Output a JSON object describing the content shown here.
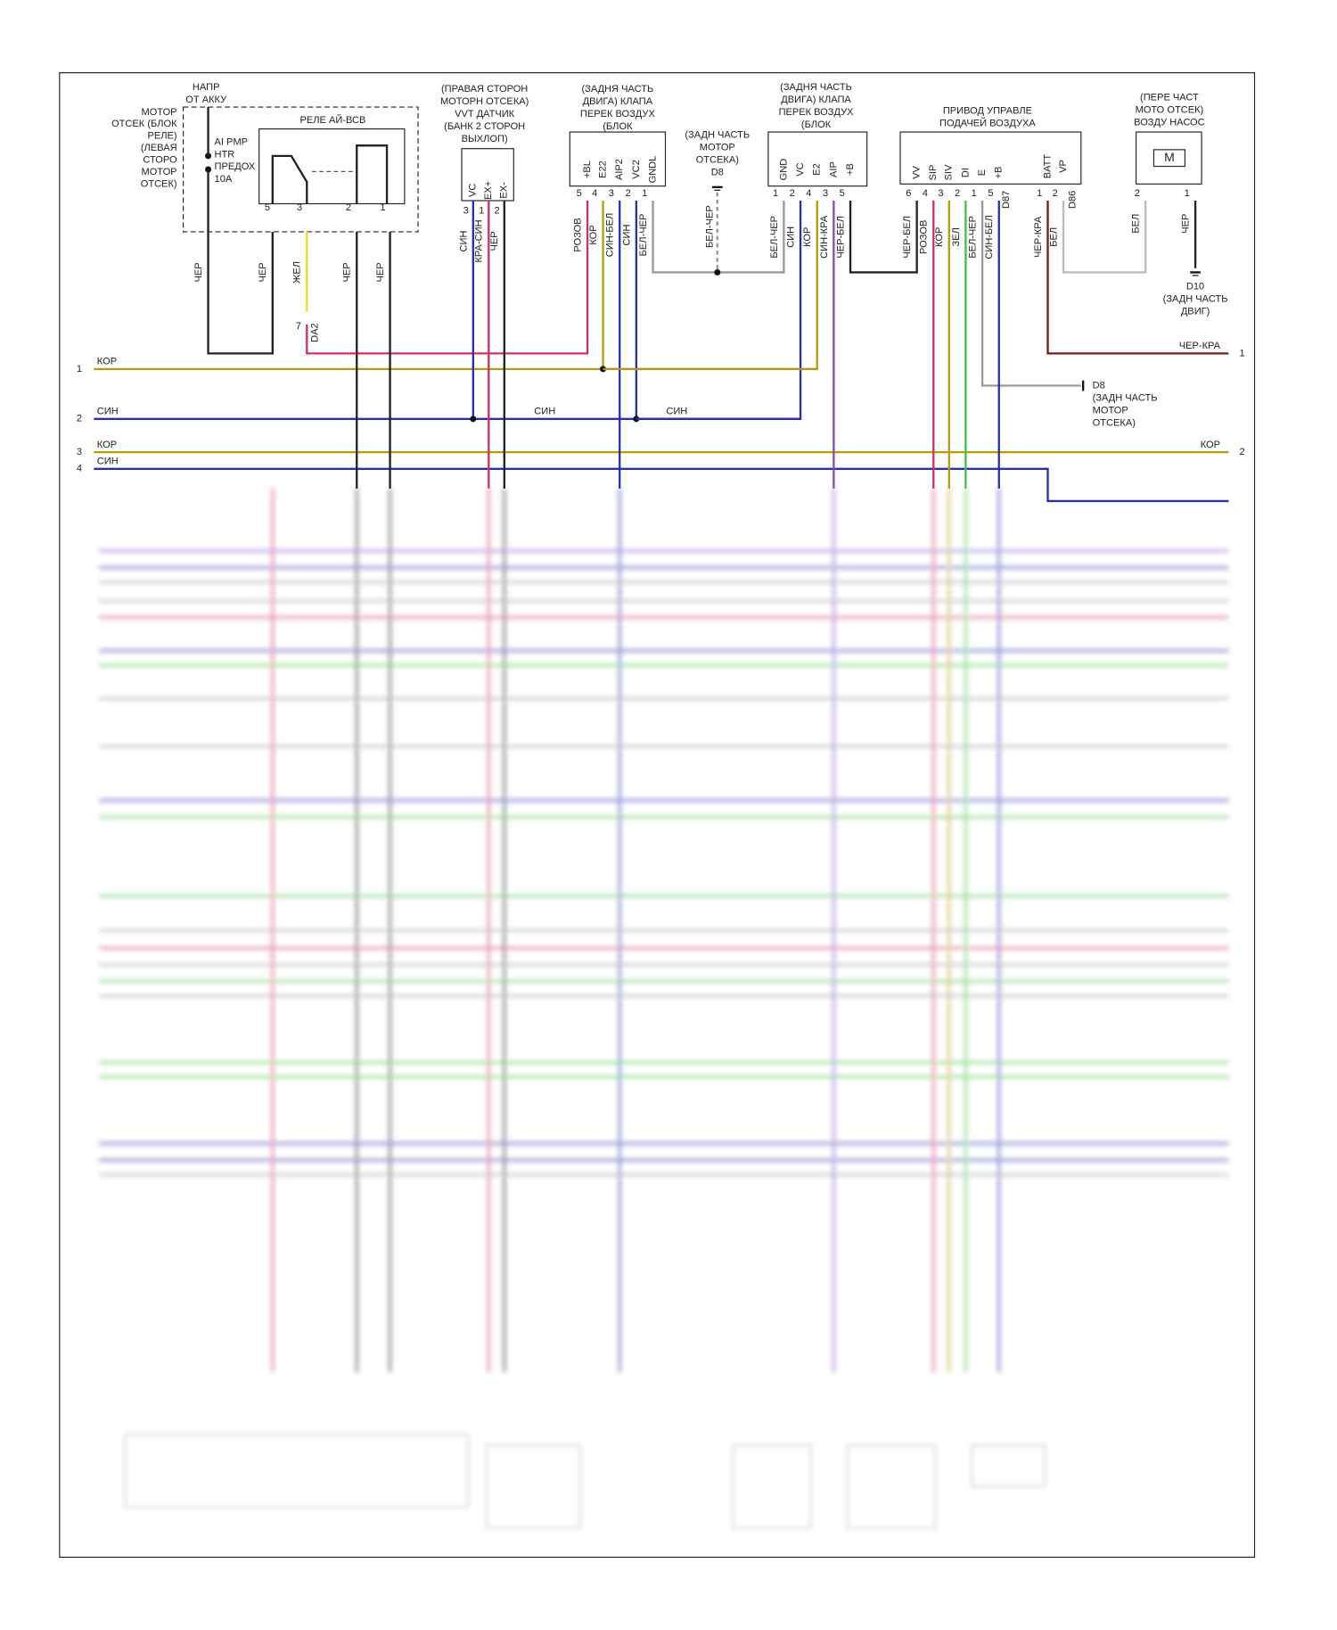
{
  "relay_block": {
    "supply_label": [
      "НАПР",
      "ОТ АККУ"
    ],
    "location": [
      "МОТОР",
      "ОТСЕК (БЛОК",
      "РЕЛЕ)",
      "(ЛЕВАЯ",
      "СТОРО",
      "МОТОР",
      "ОТСЕК)"
    ],
    "fuse": [
      "AI PMP",
      "HTR",
      "ПРЕДОХ",
      "10A"
    ],
    "relay_title": "РЕЛЕ АЙ-ВСВ",
    "pins": [
      "5",
      "3",
      "2",
      "1"
    ],
    "wires": [
      "ЧЕР",
      "ЧЕР",
      "ЖЕЛ",
      "ЧЕР",
      "ЧЕР"
    ],
    "connector": {
      "pin": "7",
      "name": "DA2"
    }
  },
  "vvt_sensor": {
    "title": [
      "(ПРАВАЯ СТОРОН",
      "МОТОРН ОТСЕКА)",
      "VVT ДАТЧИК",
      "(БАНК 2 СТОРОН",
      "ВЫХЛОП)"
    ],
    "pins": [
      "VC",
      "EX+",
      "EX-"
    ],
    "pin_numbers": [
      "3",
      "1",
      "2"
    ],
    "wires": [
      "СИН",
      "КРА-СИН",
      "ЧЕР"
    ]
  },
  "valve_1": {
    "title": [
      "(ЗАДНЯ ЧАСТЬ",
      "ДВИГА) КЛАПА",
      "ПЕРЕК ВОЗДУХ",
      "(БЛОК"
    ],
    "pins": [
      "+BL",
      "E22",
      "AIP2",
      "VC2",
      "GNDL"
    ],
    "pin_numbers": [
      "5",
      "4",
      "3",
      "2",
      "1"
    ],
    "wires": [
      "РОЗОВ",
      "КОР",
      "СИН-БЕЛ",
      "СИН",
      "БЕЛ-ЧЕР"
    ]
  },
  "ground_d8_top": {
    "label": [
      "(ЗАДН ЧАСТЬ",
      "МОТОР",
      "ОТСЕКА)",
      "D8"
    ],
    "wire": "БЕЛ-ЧЕР"
  },
  "valve_2": {
    "title": [
      "(ЗАДНЯ ЧАСТЬ",
      "ДВИГА) КЛАПА",
      "ПЕРЕК ВОЗДУХ",
      "(БЛОК"
    ],
    "pins": [
      "GND",
      "VC",
      "E2",
      "AIP",
      "+B"
    ],
    "pin_numbers": [
      "1",
      "2",
      "4",
      "3",
      "5"
    ],
    "wires": [
      "БЕЛ-ЧЕР",
      "СИН",
      "КОР",
      "СИН-КРА",
      "ЧЕР-БЕЛ"
    ]
  },
  "air_actuator": {
    "title": [
      "ПРИВОД УПРАВЛЕ",
      "ПОДАЧЕЙ ВОЗДУХА"
    ],
    "pins": [
      "VV",
      "SIP",
      "SIV",
      "DI",
      "E",
      "+B",
      "BATT",
      "VP"
    ],
    "pin_numbers": [
      "6",
      "4",
      "3",
      "2",
      "1",
      "5",
      "1",
      "2"
    ],
    "wires": [
      "ЧЕР-БЕЛ",
      "РОЗОВ",
      "КОР",
      "ЗЕЛ",
      "БЕЛ-ЧЕР",
      "СИН-БЕЛ",
      "ЧЕР-КРА",
      "БЕЛ"
    ],
    "connectors": [
      "D87",
      "D86"
    ]
  },
  "air_pump": {
    "title": [
      "(ПЕРЕ ЧАСТ",
      "МОТО ОТСЕК)",
      "ВОЗДУ НАСОС"
    ],
    "motor": "M",
    "pin_numbers": [
      "2",
      "1"
    ],
    "wires": [
      "БЕЛ",
      "ЧЕР"
    ],
    "ground": [
      "D10",
      "(ЗАДН ЧАСТЬ",
      "ДВИГ)"
    ]
  },
  "ground_d8_side": [
    "D8",
    "(ЗАДН ЧАСТЬ",
    "МОТОР",
    "ОТСЕКА)"
  ],
  "buses": [
    {
      "number": "1",
      "label": "КОР"
    },
    {
      "number": "2",
      "label": "СИН",
      "mid_labels": [
        "СИН",
        "СИН"
      ]
    },
    {
      "number": "3",
      "label": "КОР",
      "right_label": "КОР",
      "right_number": "2"
    },
    {
      "number": "4",
      "label": "СИН"
    }
  ],
  "right_output": {
    "label": "ЧЕР-КРА",
    "number": "1"
  }
}
